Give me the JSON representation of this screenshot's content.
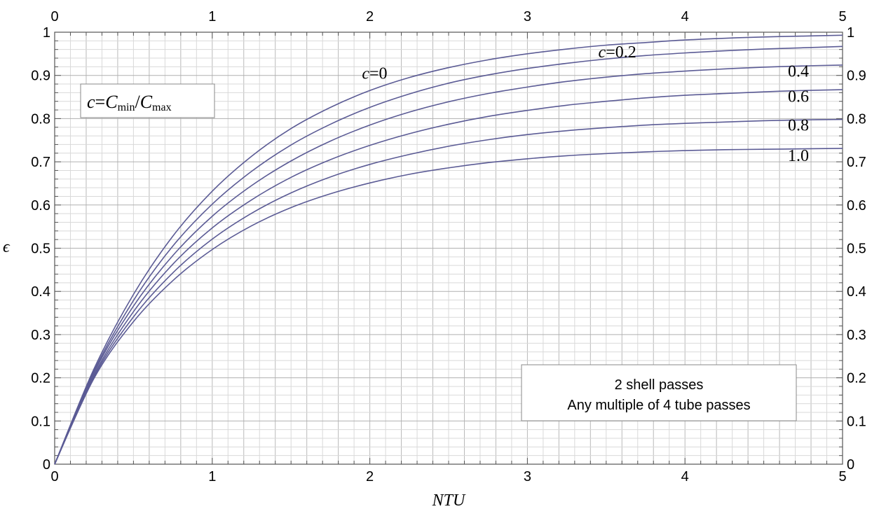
{
  "chart_data": {
    "type": "line",
    "xlabel": "NTU",
    "ylabel": "ϵ",
    "xlim": [
      0,
      5
    ],
    "ylim": [
      0,
      1
    ],
    "x_ticks": [
      "0",
      "1",
      "2",
      "3",
      "4",
      "5"
    ],
    "y_ticks": [
      "0",
      "0.1",
      "0.2",
      "0.3",
      "0.4",
      "0.5",
      "0.6",
      "0.7",
      "0.8",
      "0.9",
      "1"
    ],
    "grid": true,
    "line_color": "#5b5b95",
    "x": [
      0,
      0.25,
      0.5,
      0.75,
      1,
      1.25,
      1.5,
      1.75,
      2,
      2.25,
      2.5,
      2.75,
      3,
      3.25,
      3.5,
      3.75,
      4,
      4.25,
      4.5,
      4.75,
      5
    ],
    "series": [
      {
        "label": "c=0",
        "values": [
          0,
          0.221,
          0.393,
          0.528,
          0.632,
          0.713,
          0.777,
          0.826,
          0.865,
          0.895,
          0.918,
          0.936,
          0.95,
          0.961,
          0.97,
          0.976,
          0.982,
          0.986,
          0.989,
          0.991,
          0.993
        ]
      },
      {
        "label": "c=0.2",
        "values": [
          0,
          0.216,
          0.379,
          0.505,
          0.602,
          0.678,
          0.739,
          0.787,
          0.826,
          0.857,
          0.882,
          0.901,
          0.916,
          0.928,
          0.938,
          0.946,
          0.952,
          0.957,
          0.961,
          0.964,
          0.967
        ]
      },
      {
        "label": "0.4",
        "values": [
          0,
          0.212,
          0.366,
          0.483,
          0.574,
          0.645,
          0.702,
          0.748,
          0.785,
          0.815,
          0.839,
          0.858,
          0.873,
          0.886,
          0.896,
          0.904,
          0.91,
          0.915,
          0.919,
          0.922,
          0.924
        ]
      },
      {
        "label": "0.6",
        "values": [
          0,
          0.207,
          0.353,
          0.463,
          0.547,
          0.612,
          0.664,
          0.705,
          0.738,
          0.765,
          0.787,
          0.805,
          0.819,
          0.831,
          0.84,
          0.848,
          0.854,
          0.858,
          0.862,
          0.865,
          0.867
        ]
      },
      {
        "label": "0.8",
        "values": [
          0,
          0.203,
          0.341,
          0.443,
          0.521,
          0.581,
          0.628,
          0.665,
          0.694,
          0.717,
          0.736,
          0.751,
          0.763,
          0.772,
          0.779,
          0.785,
          0.789,
          0.792,
          0.795,
          0.797,
          0.798
        ]
      },
      {
        "label": "1.0",
        "values": [
          0,
          0.199,
          0.33,
          0.425,
          0.497,
          0.552,
          0.594,
          0.626,
          0.651,
          0.671,
          0.686,
          0.698,
          0.707,
          0.714,
          0.719,
          0.723,
          0.726,
          0.728,
          0.729,
          0.73,
          0.731
        ]
      }
    ],
    "annotations": {
      "formula_prefix": "c",
      "formula_eq": "=",
      "formula_c1": "C",
      "formula_sub1": "min",
      "formula_slash": "/",
      "formula_c2": "C",
      "formula_sub2": "max",
      "box_line1": "2 shell passes",
      "box_line2": "Any multiple of 4 tube passes"
    }
  }
}
